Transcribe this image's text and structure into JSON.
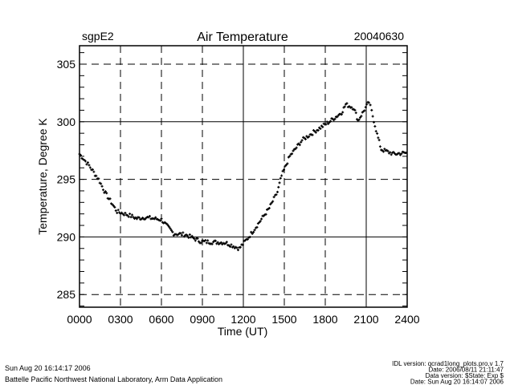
{
  "header": {
    "site": "sgpE2",
    "date": "20040630"
  },
  "footer": {
    "left_line1": "Sun Aug 20 16:14:17 2006",
    "left_line2": "Battelle Pacific Northwest National Laboratory, Arm Data Application",
    "right_lines": [
      "IDL version: qcrad1long_plots.pro,v 1.7",
      "Date: 2006/08/11 21:11:47",
      "Data version: $State: Exp $",
      "Date: Sun Aug 20 16:14:07 2006"
    ]
  },
  "chart_data": {
    "type": "scatter",
    "title": "Air Temperature",
    "xlabel": "Time (UT)",
    "ylabel": "Temperature, Degree K",
    "xlim": [
      0,
      24
    ],
    "ylim": [
      283.9,
      306.6
    ],
    "xticks": [
      {
        "value": 0,
        "label": "0000",
        "grid": "none"
      },
      {
        "value": 3,
        "label": "0300",
        "grid": "dashed"
      },
      {
        "value": 6,
        "label": "0600",
        "grid": "dashed"
      },
      {
        "value": 9,
        "label": "0900",
        "grid": "dashed"
      },
      {
        "value": 12,
        "label": "1200",
        "grid": "solid"
      },
      {
        "value": 15,
        "label": "1500",
        "grid": "dashed"
      },
      {
        "value": 18,
        "label": "1800",
        "grid": "dashed"
      },
      {
        "value": 21,
        "label": "2100",
        "grid": "solid"
      },
      {
        "value": 24,
        "label": "2400",
        "grid": "none"
      }
    ],
    "yticks": [
      {
        "value": 285,
        "label": "285",
        "grid": "dashed"
      },
      {
        "value": 290,
        "label": "290",
        "grid": "solid"
      },
      {
        "value": 295,
        "label": "295",
        "grid": "dashed"
      },
      {
        "value": 300,
        "label": "300",
        "grid": "solid"
      },
      {
        "value": 305,
        "label": "305",
        "grid": "dashed"
      }
    ],
    "y_minor_step": 1,
    "series": [
      {
        "name": "Air Temperature",
        "marker": "plus",
        "x": [
          0,
          0.7,
          1.4,
          1.9,
          2.75,
          3.6,
          4.2,
          4.8,
          6,
          6.9,
          7.75,
          8.9,
          10.7,
          11.7,
          12.4,
          13,
          13.9,
          14.5,
          14.8,
          15.4,
          16.3,
          17.4,
          18.3,
          19.2,
          19.5,
          20.1,
          20.4,
          21.2,
          21.4,
          21.8,
          22.1,
          23,
          24
        ],
        "y": [
          297.2,
          296.2,
          295,
          293.8,
          292.2,
          291.9,
          291.6,
          291.7,
          291.5,
          290.3,
          290.2,
          289.6,
          289.5,
          289,
          290,
          291,
          292.5,
          293.9,
          295.3,
          297,
          298.4,
          299.3,
          300,
          300.8,
          301.5,
          301.2,
          300.1,
          301.7,
          300.9,
          298.9,
          297.6,
          297.2,
          297.3
        ]
      }
    ]
  }
}
